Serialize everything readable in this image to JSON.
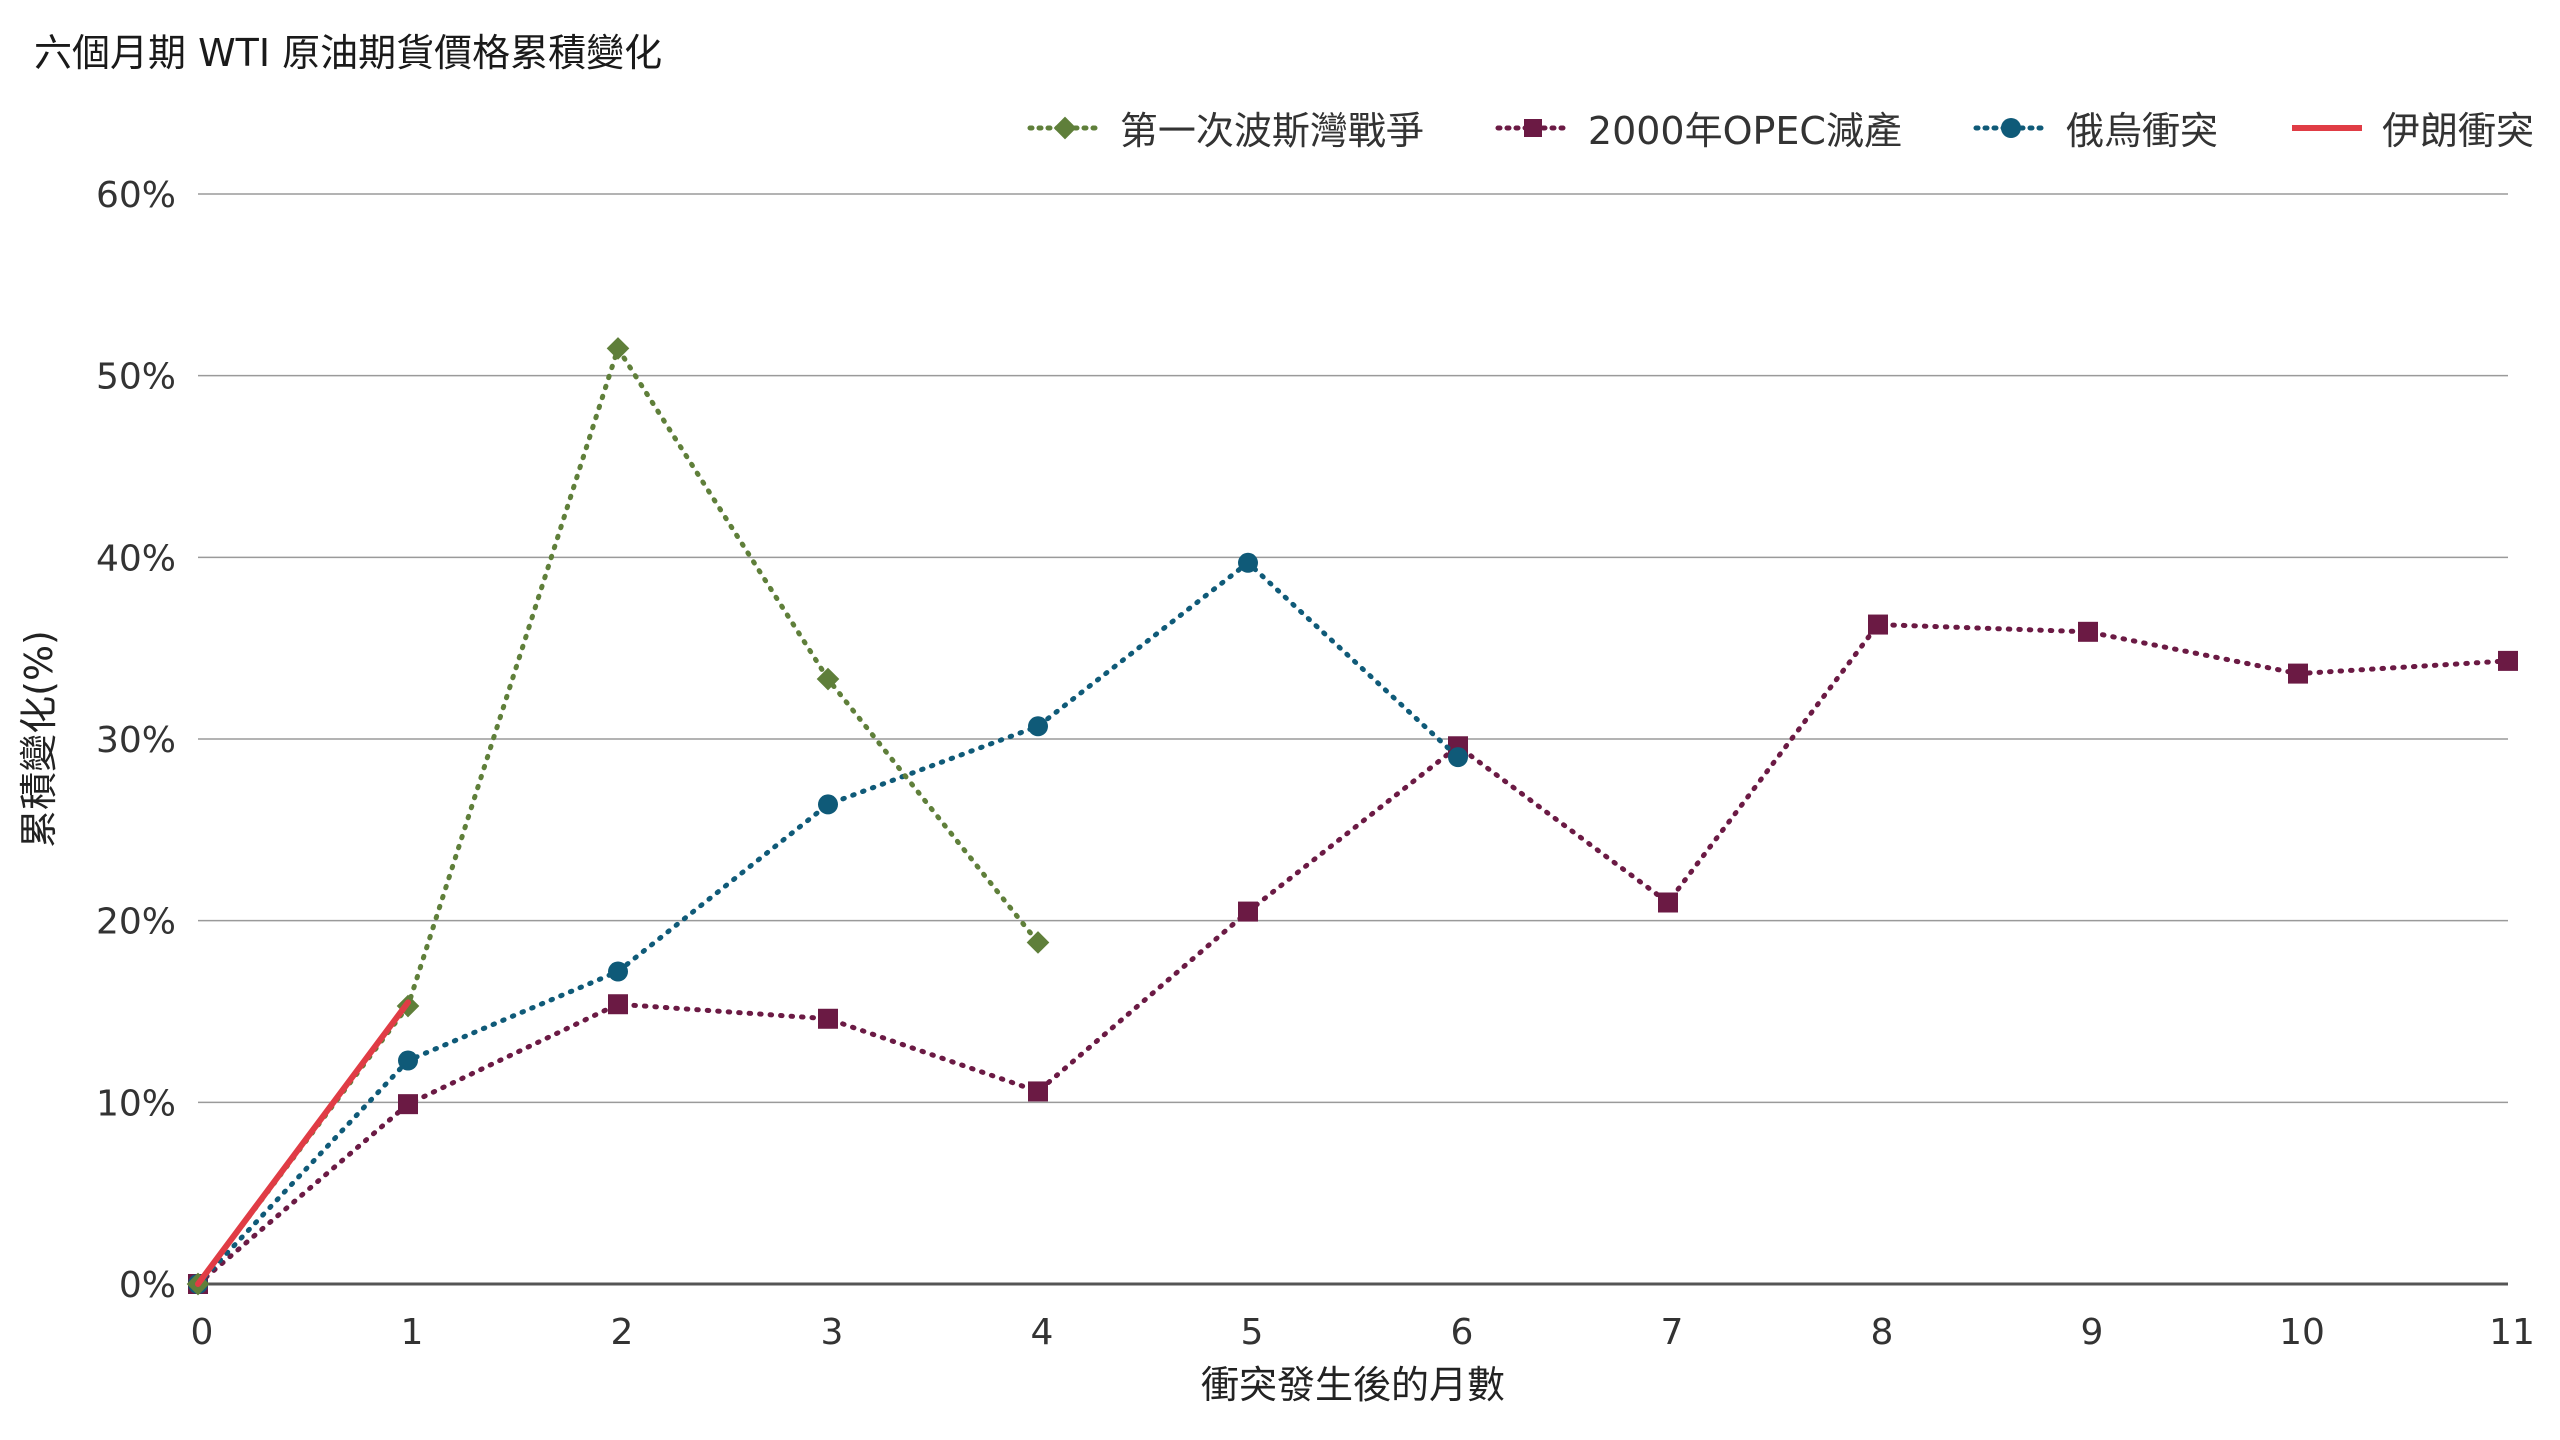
{
  "chart_data": {
    "type": "line",
    "title": "六個月期 WTI 原油期貨價格累積變化",
    "xlabel": "衝突發生後的月數",
    "ylabel": "累積變化(%)",
    "x_ticks": [
      "0",
      "1",
      "2",
      "3",
      "4",
      "5",
      "6",
      "7",
      "8",
      "9",
      "10",
      "11"
    ],
    "y_ticks": [
      "0%",
      "10%",
      "20%",
      "30%",
      "40%",
      "50%",
      "60%"
    ],
    "xlim": [
      0,
      11
    ],
    "ylim": [
      0,
      60
    ],
    "grid": "horizontal",
    "legend_position": "top-right",
    "series": [
      {
        "name": "第一次波斯灣戰爭",
        "color": "#5f7f3a",
        "line_style": "dotted",
        "marker": "diamond",
        "points": [
          [
            0,
            0
          ],
          [
            1,
            15.3
          ],
          [
            2,
            51.5
          ],
          [
            3,
            33.3
          ],
          [
            4,
            18.8
          ]
        ]
      },
      {
        "name": "2000年OPEC減產",
        "color": "#6b1a44",
        "line_style": "dotted",
        "marker": "square",
        "points": [
          [
            0,
            0
          ],
          [
            1,
            9.9
          ],
          [
            2,
            15.4
          ],
          [
            3,
            14.6
          ],
          [
            4,
            10.6
          ],
          [
            5,
            20.5
          ],
          [
            6,
            29.6
          ],
          [
            7,
            21.0
          ],
          [
            8,
            36.3
          ],
          [
            9,
            35.9
          ],
          [
            10,
            33.6
          ],
          [
            11,
            34.3
          ]
        ]
      },
      {
        "name": "俄烏衝突",
        "color": "#0f5a78",
        "line_style": "dotted",
        "marker": "circle",
        "points": [
          [
            0,
            0
          ],
          [
            1,
            12.3
          ],
          [
            2,
            17.2
          ],
          [
            3,
            26.4
          ],
          [
            4,
            30.7
          ],
          [
            5,
            39.7
          ],
          [
            6,
            29.0
          ]
        ]
      },
      {
        "name": "伊朗衝突",
        "color": "#e03c45",
        "line_style": "solid",
        "marker": "none",
        "points": [
          [
            0,
            0
          ],
          [
            1,
            15.5
          ]
        ]
      }
    ]
  }
}
